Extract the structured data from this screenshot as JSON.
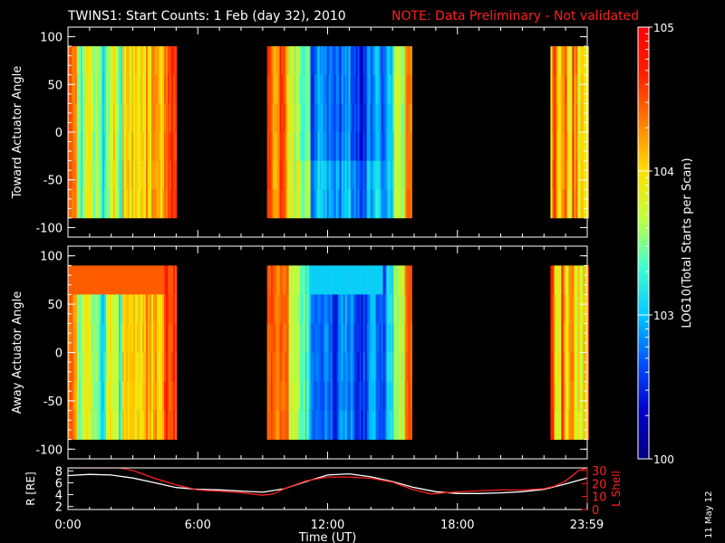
{
  "header": {
    "title": "TWINS1: Start Counts:  1 Feb (day  32), 2010",
    "note": "NOTE: Data Preliminary - Not validated",
    "note_color": "#ff2020"
  },
  "side_stamp": "11 May 12",
  "chart_data": [
    {
      "type": "heatmap",
      "panel": "toward",
      "ylabel": "Toward Actuator Angle",
      "ylim": [
        -110,
        110
      ],
      "y_data_range": [
        -90,
        90
      ],
      "yticks": [
        "100",
        "50",
        "0",
        "-50",
        "-100"
      ],
      "ytick_values": [
        100,
        50,
        0,
        -50,
        -100
      ],
      "x_hours_range": [
        0,
        24
      ],
      "segments_hours": [
        [
          0,
          5.0
        ],
        [
          9.2,
          15.9
        ],
        [
          22.3,
          24
        ]
      ]
    },
    {
      "type": "heatmap",
      "panel": "away",
      "ylabel": "Away Actuator Angle",
      "ylim": [
        -110,
        110
      ],
      "y_data_range": [
        -90,
        90
      ],
      "yticks": [
        "100",
        "50",
        "0",
        "-50",
        "-100"
      ],
      "ytick_values": [
        100,
        50,
        0,
        -50,
        -100
      ],
      "x_hours_range": [
        0,
        24
      ],
      "segments_hours": [
        [
          0,
          5.0
        ],
        [
          9.2,
          15.9
        ],
        [
          22.3,
          24
        ]
      ]
    },
    {
      "type": "line",
      "panel": "orbit",
      "xlabel": "Time (UT)",
      "xticks": [
        "0:00",
        "6:00",
        "12:00",
        "18:00",
        "23:59"
      ],
      "xtick_hours": [
        0,
        6,
        12,
        18,
        23.98
      ],
      "left_axis": {
        "label": "R [RE]",
        "ticks": [
          "8",
          "6",
          "4",
          "2"
        ],
        "range": [
          1.5,
          8.5
        ],
        "color": "#ffffff"
      },
      "right_axis": {
        "label": "L Shell",
        "ticks": [
          "30",
          "20",
          "10",
          "0"
        ],
        "range": [
          0,
          32
        ],
        "color": "#ff2020"
      },
      "series": [
        {
          "axis": "left",
          "color": "#ffffff",
          "x": [
            0,
            1,
            2,
            3,
            4,
            5,
            6,
            7,
            8,
            9,
            10,
            11,
            12,
            13,
            14,
            15,
            16,
            17,
            18,
            19,
            20,
            21,
            22,
            23,
            24
          ],
          "y": [
            7.2,
            7.4,
            7.3,
            6.8,
            6.0,
            5.2,
            4.9,
            4.8,
            4.6,
            4.4,
            5.0,
            6.2,
            7.3,
            7.5,
            7.0,
            6.2,
            5.2,
            4.5,
            4.2,
            4.2,
            4.3,
            4.5,
            4.9,
            5.8,
            6.8
          ]
        },
        {
          "axis": "right",
          "color": "#ff2020",
          "x": [
            0,
            2.4,
            3,
            4,
            5,
            6,
            7,
            8,
            9,
            9.5,
            10,
            11,
            12,
            13,
            14,
            15,
            16,
            16.8,
            17.5,
            18.5,
            20,
            21,
            22,
            22.5,
            23,
            23.6,
            24
          ],
          "y": [
            32,
            32,
            30,
            24,
            19,
            15,
            14,
            13,
            11,
            12,
            16,
            22,
            25,
            25,
            24,
            21,
            15,
            12,
            13,
            14,
            15,
            15,
            16,
            18,
            22,
            30,
            32
          ]
        }
      ]
    }
  ],
  "colorbar": {
    "label": "LOG10(Total Starts per Scan)",
    "ticks": [
      "105",
      "104",
      "103",
      "100"
    ],
    "tick_log": [
      5,
      4,
      3,
      2
    ],
    "range_log": [
      2,
      5
    ],
    "stops": [
      "#000080",
      "#0000c8",
      "#0050ff",
      "#00c8ff",
      "#40ffd0",
      "#c0ff40",
      "#ffe000",
      "#ff8000",
      "#ff2000",
      "#ff0000"
    ]
  }
}
